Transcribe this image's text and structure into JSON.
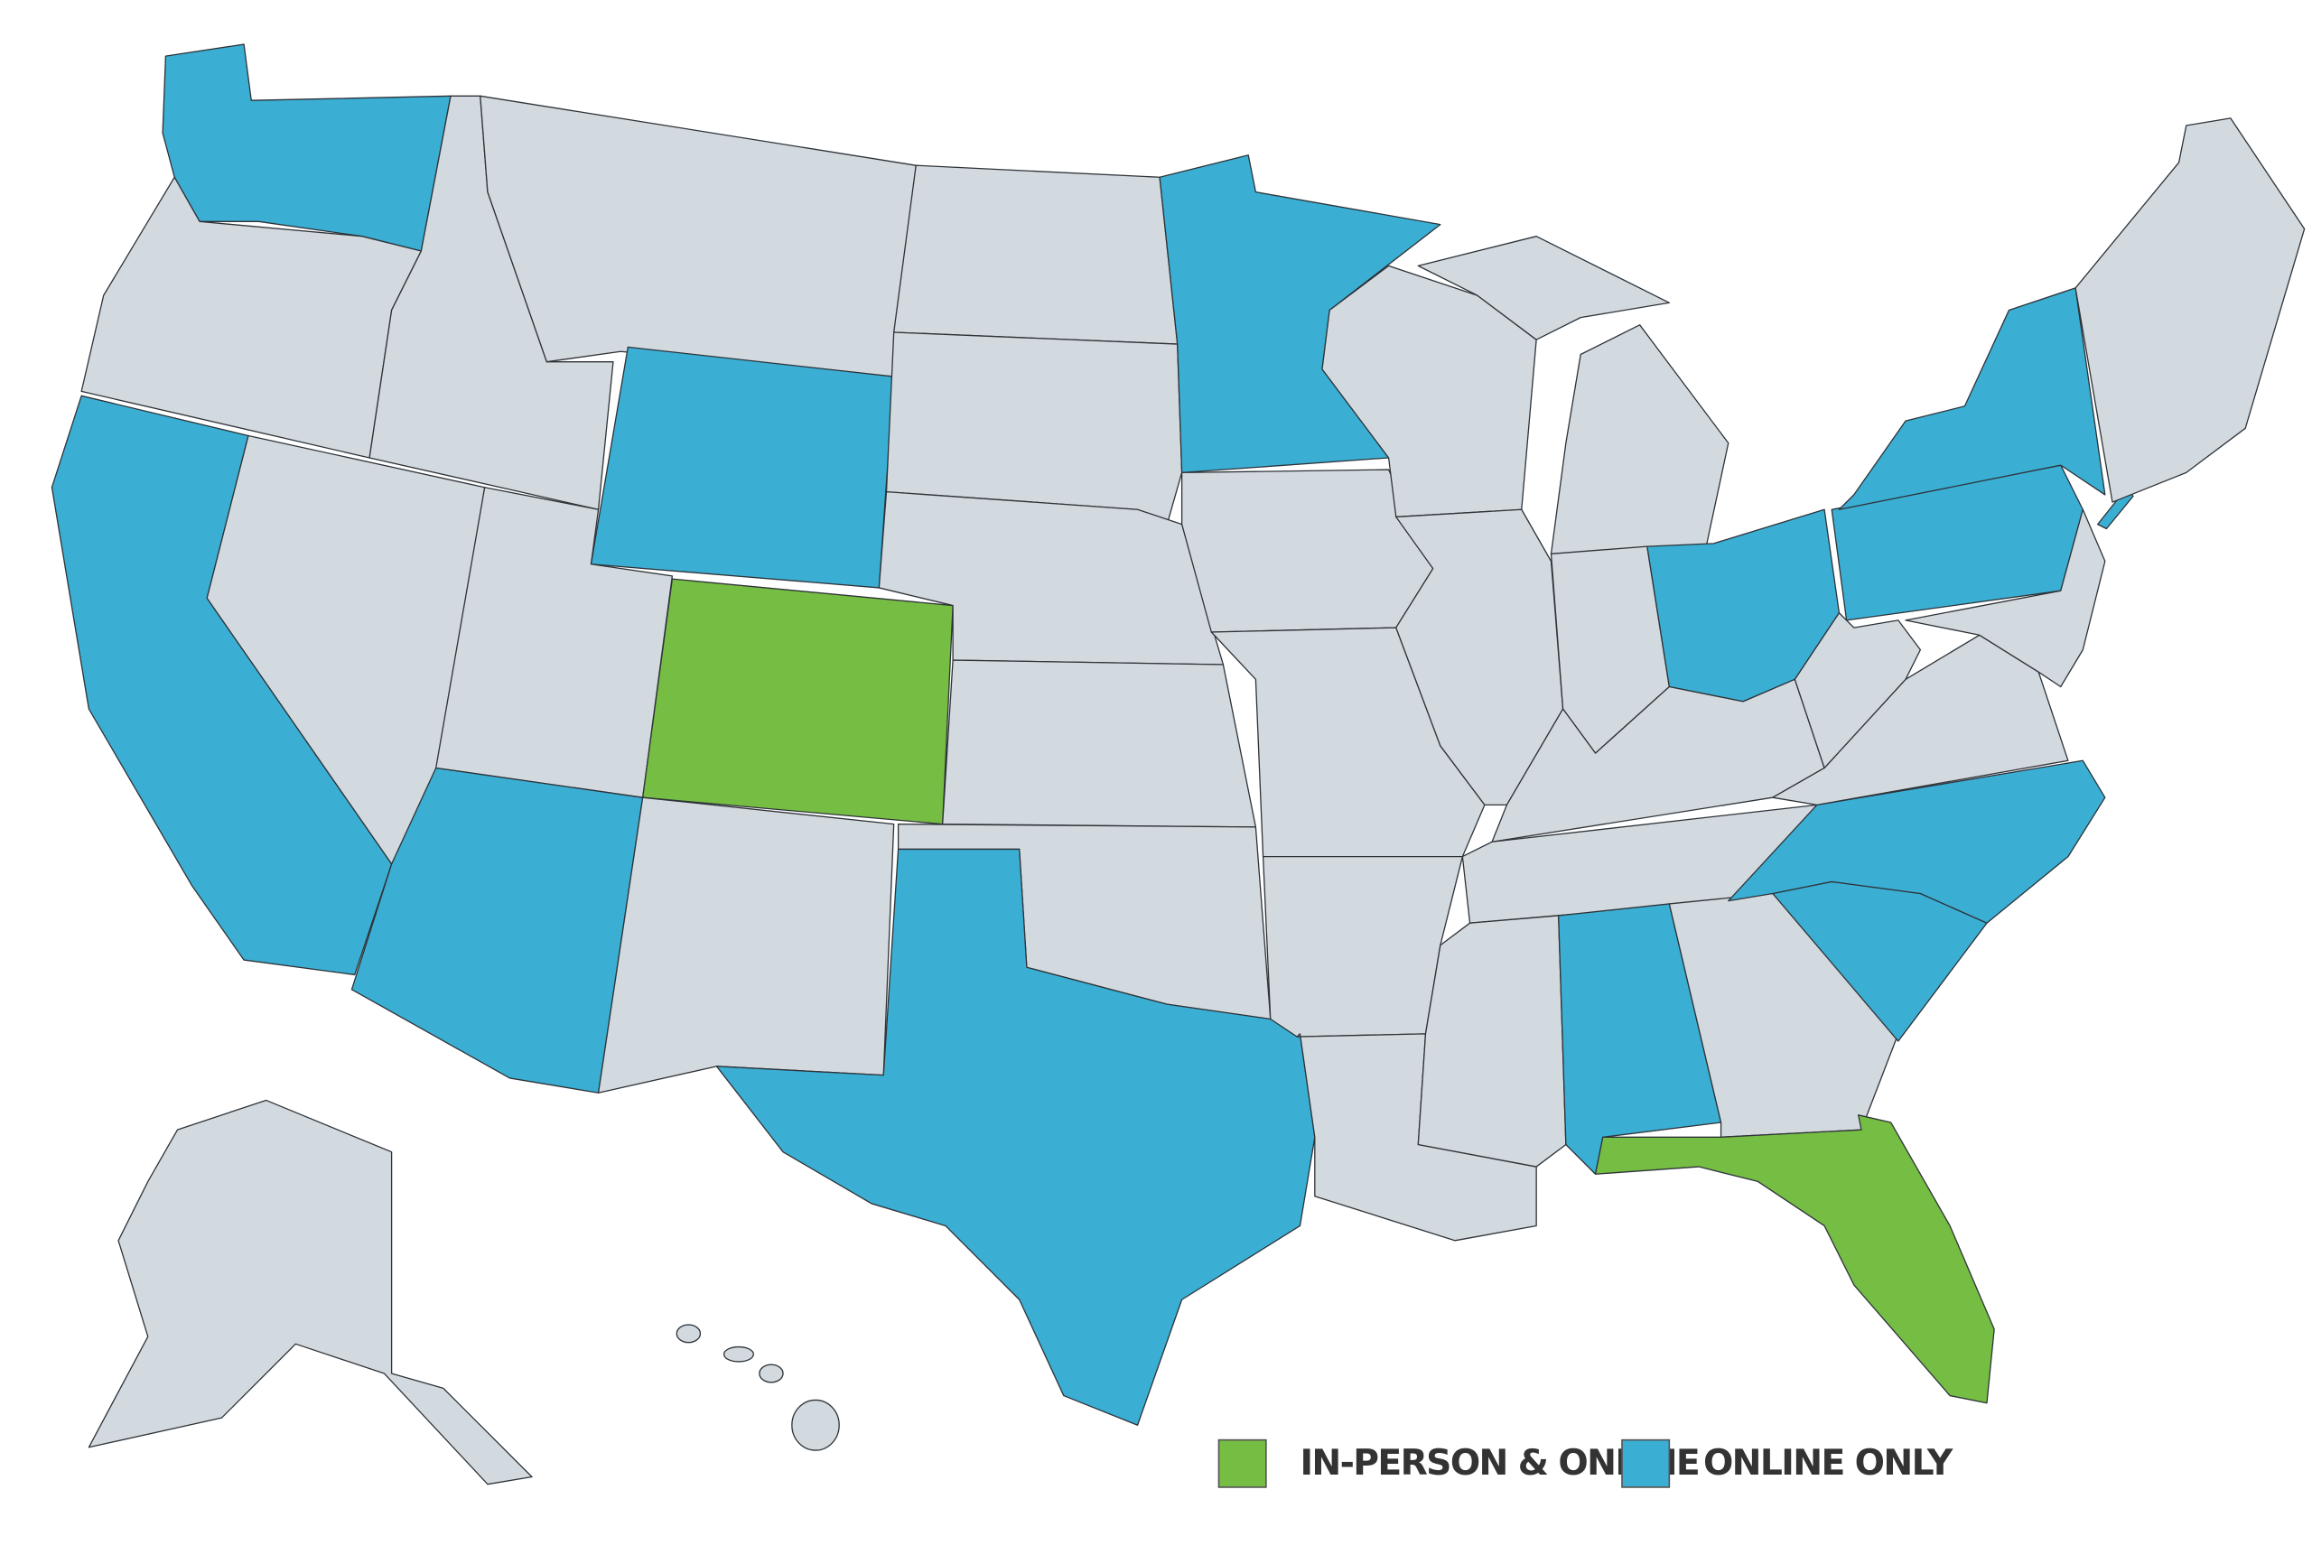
{
  "legend": [
    {
      "label": "IN-PERSON & ONLINE",
      "color": "#76bd43"
    },
    {
      "label": "ONLINE ONLY",
      "color": "#3baed4"
    }
  ]
}
